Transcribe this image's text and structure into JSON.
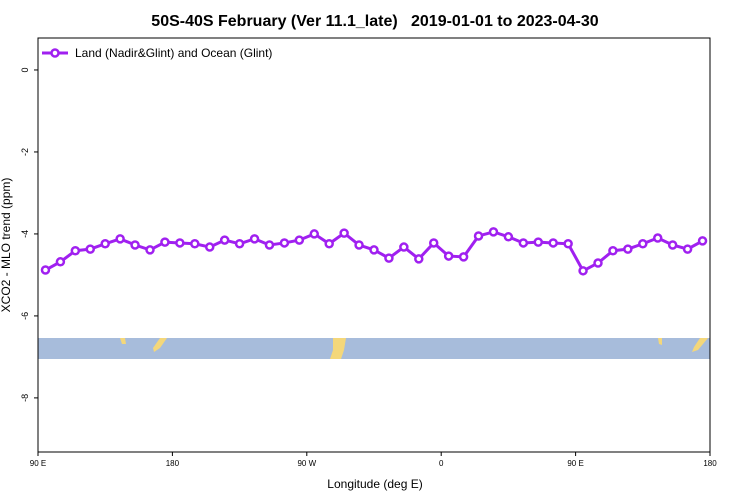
{
  "chart_data": {
    "type": "line",
    "title": "50S-40S February (Ver 11.1_late)   2019-01-01 to 2023-04-30",
    "xlabel": "Longitude (deg E)",
    "ylabel": "XCO2 - MLO trend (ppm)",
    "x": [
      95,
      105,
      115,
      125,
      135,
      145,
      155,
      165,
      175,
      185,
      195,
      205,
      215,
      225,
      235,
      245,
      255,
      265,
      275,
      285,
      295,
      305,
      315,
      325,
      335,
      345,
      355,
      365,
      375,
      385,
      395,
      405,
      415,
      425,
      435,
      445,
      455,
      465,
      475,
      485,
      495,
      505,
      515,
      525,
      535
    ],
    "series": [
      {
        "name": "Land (Nadir&Glint) and Ocean (Glint)",
        "color": "#a020f0",
        "values": [
          -4.88,
          -4.68,
          -4.41,
          -4.37,
          -4.24,
          -4.12,
          -4.27,
          -4.39,
          -4.2,
          -4.22,
          -4.24,
          -4.32,
          -4.15,
          -4.24,
          -4.12,
          -4.27,
          -4.22,
          -4.15,
          -4.0,
          -4.24,
          -3.98,
          -4.27,
          -4.39,
          -4.59,
          -4.32,
          -4.61,
          -4.22,
          -4.54,
          -4.56,
          -4.05,
          -3.95,
          -4.07,
          -4.22,
          -4.2,
          -4.22,
          -4.24,
          -4.9,
          -4.71,
          -4.41,
          -4.37,
          -4.24,
          -4.1,
          -4.27,
          -4.37,
          -4.17
        ]
      }
    ],
    "xlim": [
      90,
      540
    ],
    "xticks": [
      {
        "value": 90,
        "label": "90 E"
      },
      {
        "value": 180,
        "label": "180"
      },
      {
        "value": 270,
        "label": "90 W"
      },
      {
        "value": 360,
        "label": "0"
      },
      {
        "value": 450,
        "label": "90 E"
      },
      {
        "value": 540,
        "label": "180"
      }
    ],
    "ylim": [
      -9.32,
      0.78
    ],
    "yticks": [
      0,
      -2,
      -4,
      -6,
      -8
    ],
    "legend": "top-left"
  }
}
